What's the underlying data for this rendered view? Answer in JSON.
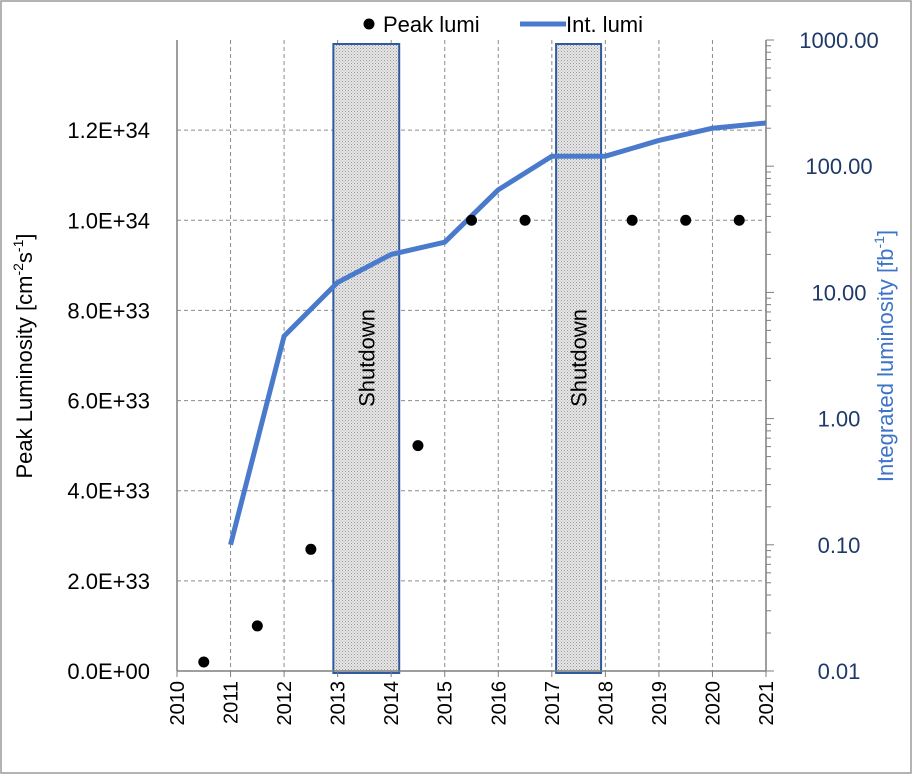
{
  "chart_data": {
    "type": "scatter+line",
    "x_ticks": [
      "2010",
      "2011",
      "2012",
      "2013",
      "2014",
      "2015",
      "2016",
      "2017",
      "2018",
      "2019",
      "2020",
      "2021"
    ],
    "xlim": [
      2010,
      2021
    ],
    "left_axis": {
      "label_main": "Peak Luminosity [cm",
      "label_sup1": "-2",
      "label_mid": "s",
      "label_sup2": "-1",
      "label_end": "]",
      "ylim": [
        0,
        1.4e+34
      ],
      "ticks": [
        0,
        2e+33,
        4e+33,
        6e+33,
        8e+33,
        1e+34,
        1.2e+34
      ],
      "tick_labels": [
        "0.0E+00",
        "2.0E+33",
        "4.0E+33",
        "6.0E+33",
        "8.0E+33",
        "1.0E+34",
        "1.2E+34"
      ]
    },
    "right_axis": {
      "label_main": "Integrated luminosity [fb",
      "label_sup": "-1",
      "label_end": "]",
      "scale": "log",
      "ylim": [
        0.01,
        1000
      ],
      "ticks": [
        0.01,
        0.1,
        1,
        10,
        100,
        1000
      ],
      "tick_labels": [
        "0.01",
        "0.10",
        "1.00",
        "10.00",
        "100.00",
        "1000.00"
      ]
    },
    "series": [
      {
        "name": "Peak lumi",
        "type": "scatter",
        "axis": "left",
        "color": "#000000",
        "x": [
          2010.5,
          2011.5,
          2012.5,
          2014.5,
          2015.5,
          2016.5,
          2018.5,
          2019.5,
          2020.5
        ],
        "y": [
          2e+32,
          1e+33,
          2.7e+33,
          5e+33,
          1e+34,
          1e+34,
          1e+34,
          1e+34,
          1e+34
        ]
      },
      {
        "name": "Int. lumi",
        "type": "line",
        "axis": "right",
        "color": "#4a7acc",
        "x": [
          2011,
          2012,
          2013,
          2014,
          2015,
          2016,
          2017,
          2018,
          2019,
          2020,
          2021
        ],
        "y": [
          0.1,
          4.5,
          12,
          20,
          25,
          65,
          120,
          120,
          160,
          200,
          220
        ]
      }
    ],
    "shutdowns": [
      {
        "label": "Shutdown",
        "x_start": 2012.92,
        "x_end": 2014.15
      },
      {
        "label": "Shutdown",
        "x_start": 2017.08,
        "x_end": 2017.92
      }
    ],
    "legend": {
      "position": "top",
      "entries": [
        {
          "label": "Peak lumi",
          "marker": "dot"
        },
        {
          "label": "Int. lumi",
          "marker": "line"
        }
      ]
    },
    "grid": true
  }
}
